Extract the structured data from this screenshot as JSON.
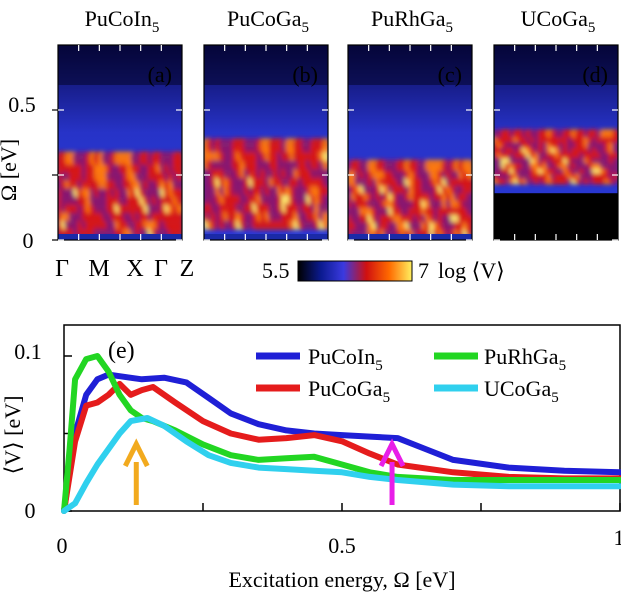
{
  "chart_data": [
    {
      "type": "heatmap",
      "panels": [
        {
          "title": "PuCoIn",
          "title_sub": "5",
          "label": "(a)",
          "band": [
            0.02,
            0.33
          ],
          "bright": 0.6,
          "dark_floor": 0.0
        },
        {
          "title": "PuCoGa",
          "title_sub": "5",
          "label": "(b)",
          "band": [
            0.05,
            0.38
          ],
          "bright": 0.85,
          "dark_floor": 0.0
        },
        {
          "title": "PuRhGa",
          "title_sub": "5",
          "label": "(c)",
          "band": [
            0.02,
            0.3
          ],
          "bright": 0.75,
          "dark_floor": 0.0
        },
        {
          "title": "UCoGa",
          "title_sub": "5",
          "label": "(d)",
          "band": [
            0.22,
            0.42
          ],
          "bright": 0.8,
          "dark_floor": 0.18
        }
      ],
      "ylabel": "Ω [eV]",
      "yticks": [
        "0",
        "0.5"
      ],
      "ytick_values": [
        0,
        0.5
      ],
      "ylim": [
        0,
        0.75
      ],
      "xtick_labels": [
        "Γ",
        "M",
        "X",
        "Γ",
        "Z"
      ],
      "colorbar": {
        "min_label": "5.5",
        "max_label": "7",
        "label": "log ⟨V⟩",
        "colors": [
          "#000000",
          "#0b1a8f",
          "#3a3ae0",
          "#d01010",
          "#ff6a00",
          "#fff060"
        ]
      }
    },
    {
      "type": "line",
      "label": "(e)",
      "xlabel": "Excitation energy, Ω [eV]",
      "ylabel": "⟨V⟩ [eV]",
      "xlim": [
        0,
        1
      ],
      "ylim": [
        0,
        0.1
      ],
      "xticks": [
        "0",
        "0.5",
        "1"
      ],
      "xtick_values": [
        0,
        0.5,
        1
      ],
      "yticks": [
        "0",
        "0.1"
      ],
      "ytick_values": [
        0,
        0.1
      ],
      "series": [
        {
          "name": "PuCoIn",
          "name_sub": "5",
          "color": "#1f1fd6",
          "x": [
            0,
            0.02,
            0.04,
            0.06,
            0.08,
            0.1,
            0.14,
            0.18,
            0.22,
            0.26,
            0.3,
            0.35,
            0.4,
            0.45,
            0.5,
            0.55,
            0.6,
            0.65,
            0.7,
            0.8,
            0.9,
            1.0
          ],
          "values": [
            0,
            0.05,
            0.075,
            0.085,
            0.088,
            0.087,
            0.085,
            0.086,
            0.083,
            0.073,
            0.063,
            0.056,
            0.052,
            0.05,
            0.049,
            0.048,
            0.047,
            0.04,
            0.033,
            0.028,
            0.026,
            0.025
          ]
        },
        {
          "name": "PuCoGa",
          "name_sub": "5",
          "color": "#e51c1c",
          "x": [
            0,
            0.02,
            0.04,
            0.06,
            0.08,
            0.1,
            0.12,
            0.14,
            0.16,
            0.2,
            0.25,
            0.3,
            0.35,
            0.4,
            0.45,
            0.5,
            0.55,
            0.6,
            0.7,
            0.8,
            0.9,
            1.0
          ],
          "values": [
            0,
            0.045,
            0.068,
            0.07,
            0.075,
            0.082,
            0.075,
            0.078,
            0.08,
            0.07,
            0.058,
            0.05,
            0.046,
            0.047,
            0.049,
            0.045,
            0.037,
            0.03,
            0.025,
            0.022,
            0.021,
            0.021
          ]
        },
        {
          "name": "PuRhGa",
          "name_sub": "5",
          "color": "#22d622",
          "x": [
            0,
            0.01,
            0.02,
            0.04,
            0.06,
            0.08,
            0.1,
            0.12,
            0.14,
            0.16,
            0.2,
            0.25,
            0.3,
            0.35,
            0.4,
            0.45,
            0.5,
            0.55,
            0.6,
            0.7,
            0.8,
            0.9,
            1.0
          ],
          "values": [
            0,
            0.04,
            0.085,
            0.098,
            0.1,
            0.09,
            0.075,
            0.065,
            0.06,
            0.058,
            0.052,
            0.043,
            0.036,
            0.033,
            0.034,
            0.035,
            0.03,
            0.025,
            0.022,
            0.02,
            0.02,
            0.02,
            0.02
          ]
        },
        {
          "name": "UCoGa",
          "name_sub": "5",
          "color": "#30d0ee",
          "x": [
            0,
            0.02,
            0.04,
            0.06,
            0.08,
            0.1,
            0.12,
            0.15,
            0.18,
            0.22,
            0.26,
            0.3,
            0.35,
            0.4,
            0.45,
            0.5,
            0.55,
            0.6,
            0.7,
            0.8,
            0.9,
            1.0
          ],
          "values": [
            0,
            0.005,
            0.018,
            0.03,
            0.04,
            0.05,
            0.058,
            0.06,
            0.055,
            0.045,
            0.036,
            0.031,
            0.028,
            0.027,
            0.026,
            0.025,
            0.022,
            0.02,
            0.017,
            0.016,
            0.016,
            0.016
          ]
        }
      ],
      "arrows": [
        {
          "x": 0.13,
          "color": "#f2aa1e"
        },
        {
          "x": 0.59,
          "color": "#e81ee8"
        }
      ]
    }
  ]
}
